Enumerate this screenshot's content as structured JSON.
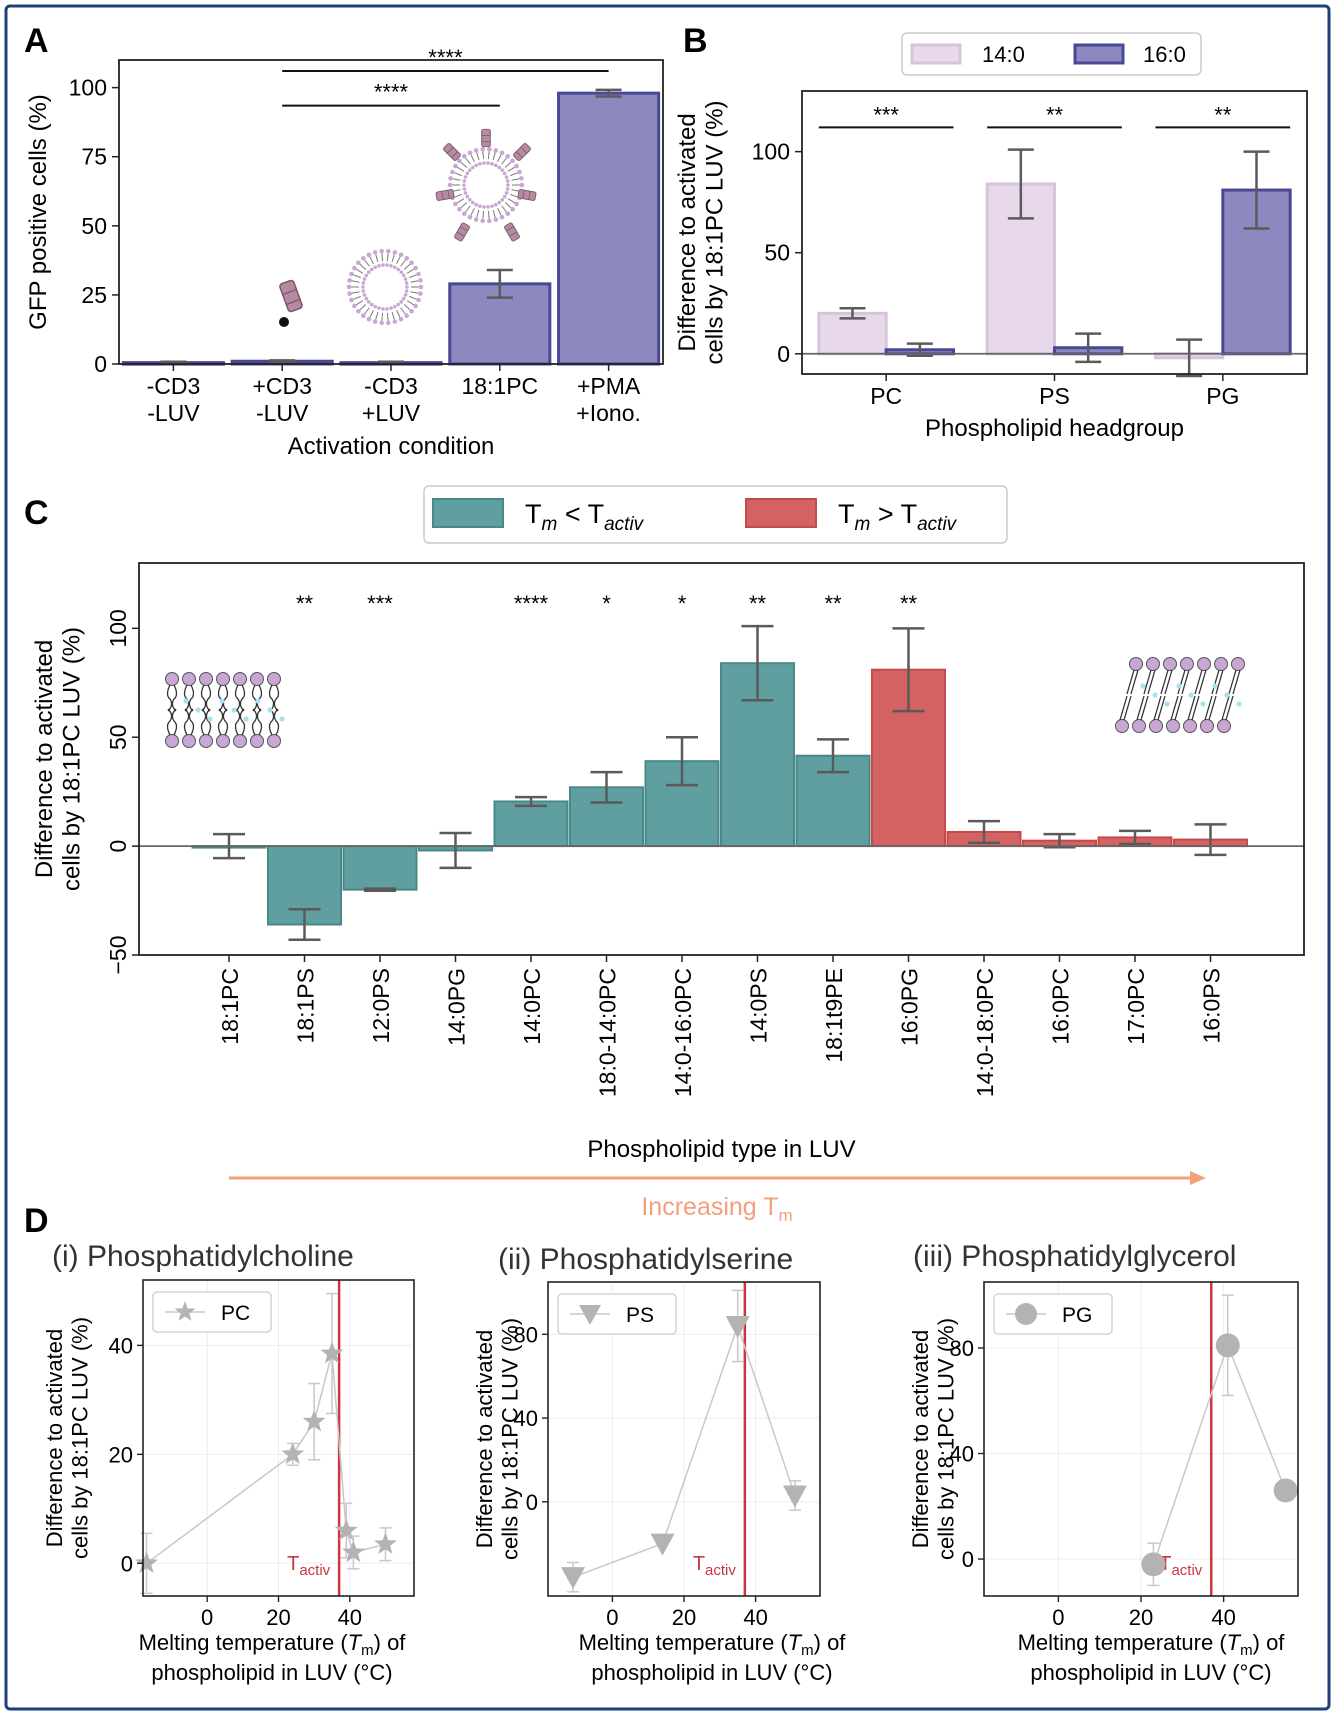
{
  "colors": {
    "light_purple": "#e7d9ea",
    "light_purple_edge": "#d6c4dc",
    "purple": "#8b89bf",
    "purple_edge": "#4a4894",
    "teal": "#5f9f9f",
    "teal_edge": "#4a8787",
    "red": "#d46263",
    "red_edge": "#c44a4b",
    "error": "#5a5a5a",
    "border": "#1f3f7a",
    "orange": "#f3a07a",
    "tactiv": "#c8383c",
    "grey_marker": "#b3b3b3"
  },
  "panelA": {
    "letter": "A",
    "ylabel": "GFP positive cells   (%)",
    "xlabel": "Activation condition",
    "icons": [
      "cd3-antibody-icon",
      "liposome-icon",
      "liposome-with-antibodies-icon"
    ]
  },
  "panelB": {
    "letter": "B",
    "ylabel_line1": "Difference to activated",
    "ylabel_line2": "cells by 18:1PC LUV  (%)",
    "xlabel": "Phospholipid headgroup"
  },
  "panelC": {
    "letter": "C",
    "legend": {
      "low": {
        "main": "T",
        "sub1": "m",
        "mid": " < T",
        "sub2": "activ"
      },
      "high": {
        "main": "T",
        "sub1": "m",
        "mid": " > T",
        "sub2": "activ"
      }
    },
    "ylabel_line1": "Difference to activated",
    "ylabel_line2": "cells by 18:1PC LUV  (%)",
    "xlabel": "Phospholipid type in LUV",
    "arrow_label": "Increasing T",
    "arrow_label_sub": "m",
    "icons": [
      "fluid-bilayer-icon",
      "gel-bilayer-icon"
    ]
  },
  "panelD": {
    "letter": "D",
    "tactiv_main": "T",
    "tactiv_sub": "activ",
    "ylabel_line1": "Difference to activated",
    "ylabel_line2": "cells by 18:1PC LUV  (%)",
    "xlabel_line1a": "Melting temperature (",
    "xlabel_T": "T",
    "xlabel_m": "m",
    "xlabel_line1b": ") of",
    "xlabel_line2": "phospholipid in LUV  (°C)",
    "subplots": [
      {
        "title": "(i)  Phosphatidylcholine",
        "legend": "PC"
      },
      {
        "title": "(ii)  Phosphatidylserine",
        "legend": "PS"
      },
      {
        "title": "(iii)  Phosphatidylglycerol",
        "legend": "PG"
      }
    ]
  },
  "chart_data": [
    {
      "panel": "A",
      "type": "bar",
      "categories": [
        [
          "-CD3",
          "-LUV"
        ],
        [
          "+CD3",
          "-LUV"
        ],
        [
          "-CD3",
          "+LUV"
        ],
        [
          "18:1PC"
        ],
        [
          "+PMA",
          "+Iono."
        ]
      ],
      "values": [
        0.5,
        1,
        0.5,
        29,
        98
      ],
      "errors": [
        0.3,
        0.3,
        0.3,
        5,
        1.2
      ],
      "ylim": [
        0,
        110
      ],
      "yticks": [
        0,
        25,
        50,
        75,
        100
      ],
      "ylabel": "GFP positive cells   (%)",
      "xlabel": "Activation condition",
      "significance": [
        {
          "from": 1,
          "to": 3,
          "y": 93.5,
          "label": "****"
        },
        {
          "from": 1,
          "to": 4,
          "y": 106,
          "label": "****"
        }
      ]
    },
    {
      "panel": "B",
      "type": "bar",
      "categories": [
        "PC",
        "PS",
        "PG"
      ],
      "series": [
        {
          "name": "14:0",
          "values": [
            20,
            84,
            -2
          ],
          "errors": [
            2.5,
            17,
            9
          ]
        },
        {
          "name": "16:0",
          "values": [
            2,
            3,
            81
          ],
          "errors": [
            3,
            7,
            19
          ]
        }
      ],
      "ylim": [
        -10,
        130
      ],
      "yticks": [
        0,
        50,
        100
      ],
      "ylabel": "Difference to activated cells by 18:1PC LUV  (%)",
      "xlabel": "Phospholipid headgroup",
      "legend_position": "top",
      "significance": [
        {
          "index": 0,
          "y": 112,
          "label": "***"
        },
        {
          "index": 1,
          "y": 112,
          "label": "**"
        },
        {
          "index": 2,
          "y": 112,
          "label": "**"
        }
      ]
    },
    {
      "panel": "C",
      "type": "bar",
      "categories": [
        "18:1PC",
        "18:1PS",
        "12:0PS",
        "14:0PG",
        "14:0PC",
        "18:0-14:0PC",
        "14:0-16:0PC",
        "14:0PS",
        "18:1t9PE",
        "16:0PG",
        "14:0-18:0PC",
        "16:0PC",
        "17:0PC",
        "16:0PS"
      ],
      "values": [
        0,
        -36,
        -20,
        -2,
        20.5,
        27,
        39,
        84,
        41.5,
        81,
        6.5,
        2.5,
        4,
        3
      ],
      "errors": [
        5.5,
        7,
        0.5,
        8,
        2,
        7,
        11,
        17,
        7.5,
        19,
        5,
        3,
        3,
        7
      ],
      "group": [
        "low",
        "low",
        "low",
        "low",
        "low",
        "low",
        "low",
        "low",
        "low",
        "high",
        "high",
        "high",
        "high",
        "high"
      ],
      "significance": [
        "",
        "**",
        "***",
        "",
        "****",
        "*",
        "*",
        "**",
        "**",
        "**",
        "",
        "",
        "",
        ""
      ],
      "series_legend": [
        "Tm < Tactiv",
        "Tm > Tactiv"
      ],
      "legend_position": "top",
      "ylim": [
        -50,
        130
      ],
      "yticks": [
        -50,
        0,
        50,
        100
      ],
      "ylabel": "Difference to activated cells by 18:1PC LUV  (%)",
      "xlabel": "Phospholipid type in LUV"
    },
    {
      "panel": "D(i)",
      "type": "line",
      "title": "(i)  Phosphatidylcholine",
      "series": [
        {
          "name": "PC",
          "marker": "star",
          "x": [
            -17,
            24,
            30,
            35,
            39,
            41,
            50
          ],
          "y": [
            0,
            20,
            26,
            38.5,
            6,
            2,
            3.5
          ],
          "yerr": [
            5.5,
            2,
            7,
            11,
            5,
            3,
            3
          ]
        }
      ],
      "xlim": [
        -18,
        58
      ],
      "ylim": [
        -6,
        52
      ],
      "xticks": [
        0,
        20,
        40
      ],
      "yticks": [
        0,
        20,
        40
      ],
      "vline": 37
    },
    {
      "panel": "D(ii)",
      "type": "line",
      "title": "(ii)  Phosphatidylserine",
      "series": [
        {
          "name": "PS",
          "marker": "triangle-down",
          "x": [
            -11,
            14,
            35,
            51
          ],
          "y": [
            -36,
            -20,
            84,
            3
          ],
          "yerr": [
            7,
            0.5,
            17,
            7
          ]
        }
      ],
      "xlim": [
        -18,
        58
      ],
      "ylim": [
        -45,
        105
      ],
      "xticks": [
        0,
        20,
        40
      ],
      "yticks": [
        0,
        40,
        80
      ],
      "vline": 37
    },
    {
      "panel": "D(iii)",
      "type": "line",
      "title": "(iii)  Phosphatidylglycerol",
      "series": [
        {
          "name": "PG",
          "marker": "circle",
          "x": [
            23,
            41,
            55
          ],
          "y": [
            -2,
            81,
            26
          ],
          "yerr": [
            8,
            19,
            2
          ]
        }
      ],
      "xlim": [
        -18,
        58
      ],
      "ylim": [
        -14,
        105
      ],
      "xticks": [
        0,
        20,
        40
      ],
      "yticks": [
        0,
        40,
        80
      ],
      "vline": 37
    }
  ]
}
